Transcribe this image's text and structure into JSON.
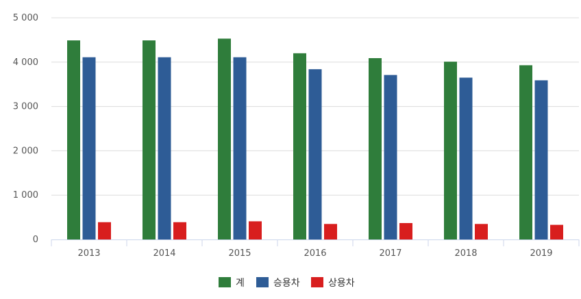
{
  "chart_data": {
    "type": "bar",
    "categories": [
      "2013",
      "2014",
      "2015",
      "2016",
      "2017",
      "2018",
      "2019"
    ],
    "series": [
      {
        "name": "계",
        "color": "#2f7d3b",
        "values": [
          4490,
          4490,
          4530,
          4200,
          4090,
          4010,
          3930
        ]
      },
      {
        "name": "승용차",
        "color": "#2e5c96",
        "values": [
          4110,
          4110,
          4110,
          3840,
          3710,
          3650,
          3590
        ]
      },
      {
        "name": "상용차",
        "color": "#d81e1e",
        "values": [
          390,
          390,
          410,
          350,
          370,
          350,
          330
        ]
      }
    ],
    "y_ticks": [
      "0",
      "1 000",
      "2 000",
      "3 000",
      "4 000",
      "5 000"
    ],
    "ylim": [
      0,
      5000
    ],
    "grid": "horizontal",
    "legend_position": "bottom-center"
  }
}
